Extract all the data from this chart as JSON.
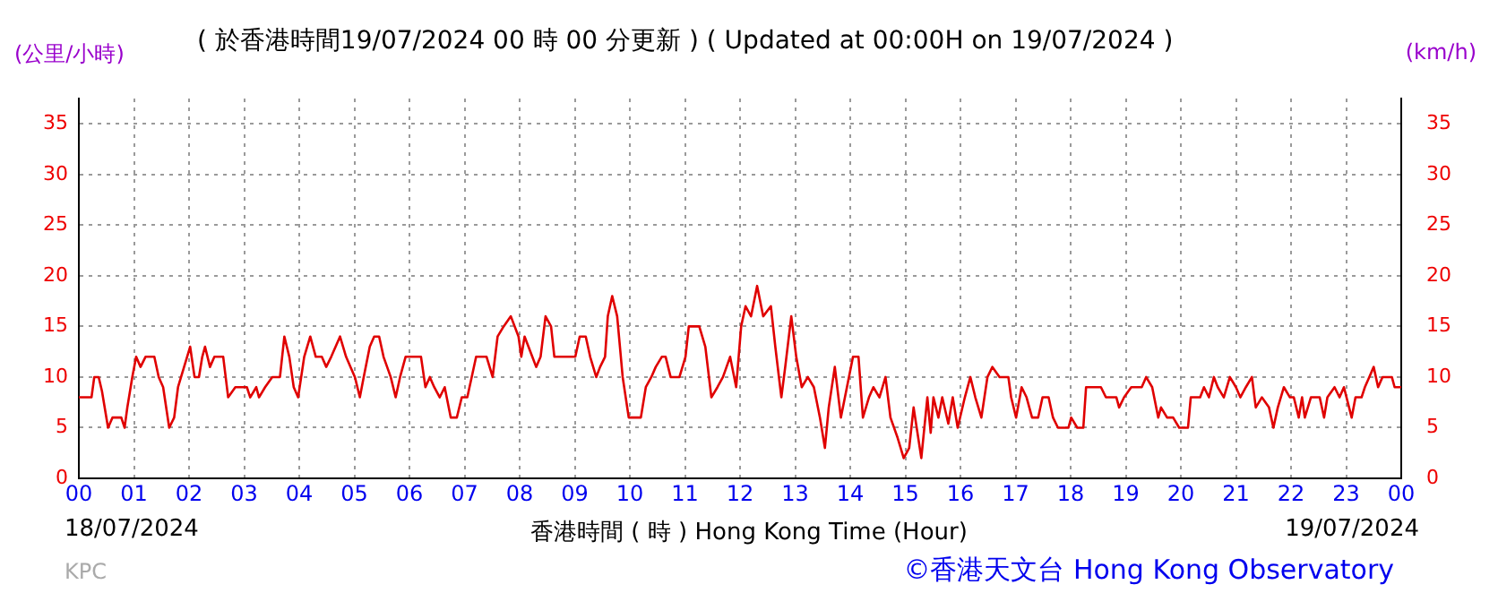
{
  "chart_data": {
    "type": "line",
    "title": "( 於香港時間19/07/2024 00 時 00 分更新 ) ( Updated at 00:00H on 19/07/2024 )",
    "xlabel": "香港時間 ( 時 )  Hong Kong Time (Hour)",
    "ylabel": "(公里/小時)",
    "y2label": "(km/h)",
    "annotations": [
      "18/07/2024",
      "19/07/2024",
      "KPC",
      "©香港天文台 Hong Kong Observatory"
    ],
    "xlim": [
      0,
      24
    ],
    "xticks": [
      {
        "value": 0,
        "label": "00"
      },
      {
        "value": 1,
        "label": "01"
      },
      {
        "value": 2,
        "label": "02"
      },
      {
        "value": 3,
        "label": "03"
      },
      {
        "value": 4,
        "label": "04"
      },
      {
        "value": 5,
        "label": "05"
      },
      {
        "value": 6,
        "label": "06"
      },
      {
        "value": 7,
        "label": "07"
      },
      {
        "value": 8,
        "label": "08"
      },
      {
        "value": 9,
        "label": "09"
      },
      {
        "value": 10,
        "label": "10"
      },
      {
        "value": 11,
        "label": "11"
      },
      {
        "value": 12,
        "label": "12"
      },
      {
        "value": 13,
        "label": "13"
      },
      {
        "value": 14,
        "label": "14"
      },
      {
        "value": 15,
        "label": "15"
      },
      {
        "value": 16,
        "label": "16"
      },
      {
        "value": 17,
        "label": "17"
      },
      {
        "value": 18,
        "label": "18"
      },
      {
        "value": 19,
        "label": "19"
      },
      {
        "value": 20,
        "label": "20"
      },
      {
        "value": 21,
        "label": "21"
      },
      {
        "value": 22,
        "label": "22"
      },
      {
        "value": 23,
        "label": "23"
      },
      {
        "value": 24,
        "label": "00"
      }
    ],
    "ylim": [
      0,
      37.5
    ],
    "yticks": [
      0,
      5,
      10,
      15,
      20,
      25,
      30,
      35
    ],
    "y2lim": [
      0,
      37.5
    ],
    "y2ticks": [
      0,
      5,
      10,
      15,
      20,
      25,
      30,
      35
    ],
    "grid": true,
    "marker": "none",
    "line_style": "solid",
    "series": [
      {
        "color": "#e00000",
        "x": [
          0,
          0.23,
          0.28,
          0.36,
          0.42,
          0.53,
          0.61,
          0.77,
          0.83,
          0.88,
          0.97,
          1.04,
          1.12,
          1.21,
          1.37,
          1.45,
          1.53,
          1.64,
          1.73,
          1.8,
          1.91,
          2.02,
          2.1,
          2.18,
          2.24,
          2.29,
          2.38,
          2.46,
          2.62,
          2.71,
          2.84,
          3.05,
          3.11,
          3.22,
          3.27,
          3.38,
          3.51,
          3.65,
          3.73,
          3.82,
          3.9,
          3.98,
          4.09,
          4.2,
          4.3,
          4.41,
          4.49,
          4.58,
          4.74,
          4.85,
          5.01,
          5.1,
          5.17,
          5.28,
          5.36,
          5.45,
          5.53,
          5.66,
          5.75,
          5.83,
          5.93,
          6.21,
          6.29,
          6.37,
          6.45,
          6.55,
          6.64,
          6.75,
          6.86,
          6.95,
          7.05,
          7.13,
          7.21,
          7.4,
          7.51,
          7.6,
          7.71,
          7.84,
          7.98,
          8.03,
          8.09,
          8.16,
          8.23,
          8.3,
          8.38,
          8.47,
          8.57,
          8.63,
          9.01,
          9.09,
          9.2,
          9.28,
          9.39,
          9.46,
          9.55,
          9.6,
          9.68,
          9.77,
          9.87,
          9.98,
          10.2,
          10.29,
          10.39,
          10.47,
          10.58,
          10.65,
          10.74,
          10.9,
          11.01,
          11.07,
          11.26,
          11.37,
          11.48,
          11.59,
          11.69,
          11.82,
          11.93,
          12.02,
          12.1,
          12.2,
          12.31,
          12.42,
          12.56,
          12.64,
          12.75,
          12.82,
          12.93,
          13.02,
          13.12,
          13.23,
          13.34,
          13.45,
          13.54,
          13.61,
          13.72,
          13.83,
          13.94,
          14.05,
          14.15,
          14.23,
          14.34,
          14.42,
          14.53,
          14.64,
          14.73,
          14.86,
          14.97,
          15.07,
          15.15,
          15.29,
          15.4,
          15.46,
          15.51,
          15.6,
          15.67,
          15.78,
          15.86,
          15.95,
          16.08,
          16.18,
          16.27,
          16.38,
          16.49,
          16.58,
          16.71,
          16.87,
          16.92,
          17.01,
          17.11,
          17.2,
          17.3,
          17.41,
          17.49,
          17.6,
          17.68,
          17.77,
          17.96,
          18.01,
          18.12,
          18.23,
          18.28,
          18.55,
          18.64,
          18.83,
          18.88,
          18.97,
          19.1,
          19.29,
          19.37,
          19.48,
          19.59,
          19.64,
          19.75,
          19.86,
          19.97,
          20.13,
          20.18,
          20.35,
          20.42,
          20.51,
          20.6,
          20.67,
          20.78,
          20.89,
          21,
          21.08,
          21.18,
          21.29,
          21.36,
          21.47,
          21.6,
          21.68,
          21.76,
          21.87,
          21.98,
          22.05,
          22.14,
          22.2,
          22.25,
          22.36,
          22.52,
          22.6,
          22.66,
          22.79,
          22.88,
          22.96,
          23.1,
          23.17,
          23.28,
          23.34,
          23.42,
          23.5,
          23.58,
          23.66,
          23.83,
          23.88,
          24
        ],
        "values": [
          8,
          8,
          10,
          10,
          8.6,
          5,
          6,
          6,
          5,
          7,
          10,
          12,
          11,
          12,
          12,
          10,
          9,
          5,
          6,
          9,
          11,
          13,
          10,
          10,
          12,
          13,
          11,
          12,
          12,
          8,
          9,
          9,
          8,
          9,
          8,
          9,
          10,
          10,
          14,
          12,
          9,
          8,
          12,
          14,
          12,
          12,
          11,
          12,
          14,
          12,
          10,
          8,
          10,
          13,
          14,
          14,
          12,
          10,
          8,
          10,
          12,
          12,
          9,
          10,
          9,
          8,
          9,
          6,
          6,
          8,
          8,
          10,
          12,
          12,
          10,
          14,
          15,
          16,
          14,
          12,
          14,
          13,
          12,
          11,
          12,
          16,
          15,
          12,
          12,
          14,
          14,
          12,
          10,
          11,
          12,
          16,
          18,
          16,
          10,
          6,
          6,
          9,
          10,
          11,
          12,
          12,
          10,
          10,
          12,
          15,
          15,
          13,
          8,
          9,
          10,
          12,
          9,
          15,
          17,
          16,
          19,
          16,
          17,
          13,
          8,
          11,
          16,
          12,
          9,
          10,
          9,
          6,
          3,
          7,
          11,
          6,
          9,
          12,
          12,
          6,
          8,
          9,
          8,
          10,
          6,
          4,
          2,
          3,
          7,
          2,
          8,
          4.5,
          8,
          6,
          8,
          5.4,
          8,
          5,
          8,
          10,
          8,
          6,
          10,
          11,
          10,
          10,
          8,
          6,
          9,
          8,
          6,
          6,
          8,
          8,
          6,
          5,
          5,
          6,
          5,
          5,
          9,
          9,
          8,
          8,
          7,
          8,
          9,
          9,
          10,
          9,
          6,
          7,
          6,
          6,
          5,
          5,
          8,
          8,
          9,
          8,
          10,
          9,
          8,
          10,
          9,
          8,
          9,
          10,
          7,
          8,
          7,
          5,
          7,
          9,
          8,
          8,
          6,
          8,
          6,
          8,
          8,
          6,
          8,
          9,
          8,
          9,
          6,
          8,
          8,
          9,
          10,
          11,
          9,
          10,
          10,
          9,
          9
        ]
      }
    ]
  }
}
